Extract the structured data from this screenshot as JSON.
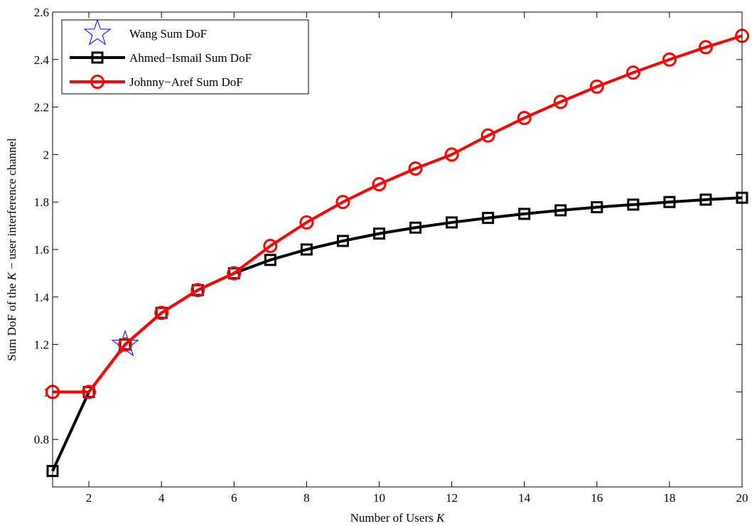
{
  "chart_data": {
    "type": "line",
    "title": "",
    "xlabel": "Number of Users",
    "xlabel_var": "K",
    "ylabel_pre": "Sum DoF of the ",
    "ylabel_var": "K",
    "ylabel_post": "− user interference channel",
    "xlim": [
      1,
      20
    ],
    "ylim": [
      0.6,
      2.6
    ],
    "xticks": [
      2,
      4,
      6,
      8,
      10,
      12,
      14,
      16,
      18,
      20
    ],
    "yticks": [
      0.8,
      1,
      1.2,
      1.4,
      1.6,
      1.8,
      2,
      2.2,
      2.4,
      2.6
    ],
    "grid": false,
    "legend_position": "top-left",
    "series": [
      {
        "name": "Wang Sum DoF",
        "marker": "star",
        "line": false,
        "color": "#0000ff",
        "x": [
          3
        ],
        "y": [
          1.2
        ]
      },
      {
        "name": "Ahmed−Ismail Sum DoF",
        "marker": "square",
        "line": true,
        "color": "#000000",
        "x": [
          1,
          2,
          3,
          4,
          5,
          6,
          7,
          8,
          9,
          10,
          11,
          12,
          13,
          14,
          15,
          16,
          17,
          18,
          19,
          20
        ],
        "y": [
          0.667,
          1.0,
          1.2,
          1.333,
          1.429,
          1.5,
          1.556,
          1.6,
          1.636,
          1.667,
          1.692,
          1.714,
          1.733,
          1.75,
          1.765,
          1.778,
          1.789,
          1.8,
          1.81,
          1.818
        ]
      },
      {
        "name": "Johnny−Aref Sum DoF",
        "marker": "circle",
        "line": true,
        "color": "#ff0000",
        "x": [
          1,
          2,
          3,
          4,
          5,
          6,
          7,
          8,
          9,
          10,
          11,
          12,
          13,
          14,
          15,
          16,
          17,
          18,
          19,
          20
        ],
        "y": [
          1.0,
          1.0,
          1.2,
          1.333,
          1.429,
          1.5,
          1.615,
          1.714,
          1.8,
          1.875,
          1.941,
          2.0,
          2.08,
          2.154,
          2.222,
          2.286,
          2.345,
          2.4,
          2.452,
          2.5
        ]
      }
    ]
  }
}
